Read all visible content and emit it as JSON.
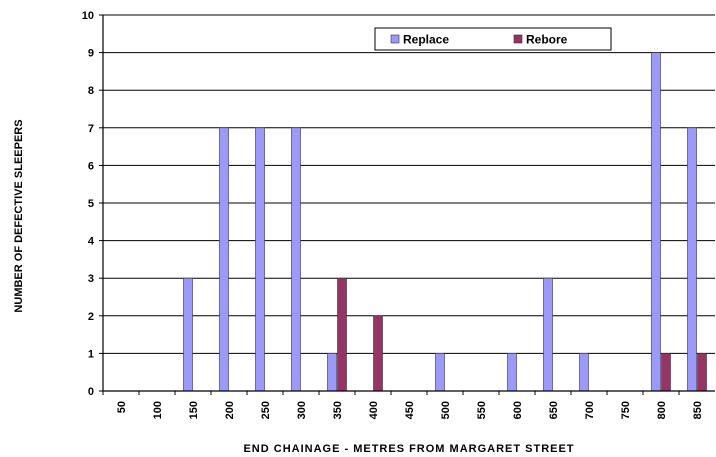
{
  "chart_data": {
    "type": "bar",
    "title": "",
    "xlabel": "END CHAINAGE - METRES FROM MARGARET STREET",
    "ylabel": "NUMBER OF DEFECTIVE SLEEPERS",
    "ylim": [
      0,
      10
    ],
    "yticks": [
      "0",
      "1",
      "2",
      "3",
      "4",
      "5",
      "6",
      "7",
      "8",
      "9",
      "10"
    ],
    "grid": true,
    "legend_position": "top-right",
    "categories": [
      "50",
      "100",
      "150",
      "200",
      "250",
      "300",
      "350",
      "400",
      "450",
      "500",
      "550",
      "600",
      "650",
      "700",
      "750",
      "800",
      "850"
    ],
    "series": [
      {
        "name": "Replace",
        "color": "#9999ff",
        "values": [
          0,
          0,
          3,
          7,
          7,
          7,
          1,
          0,
          0,
          1,
          0,
          1,
          3,
          1,
          0,
          9,
          7
        ]
      },
      {
        "name": "Rebore",
        "color": "#993366",
        "values": [
          0,
          0,
          0,
          0,
          0,
          0,
          3,
          2,
          0,
          0,
          0,
          0,
          0,
          0,
          0,
          1,
          1
        ]
      }
    ]
  }
}
